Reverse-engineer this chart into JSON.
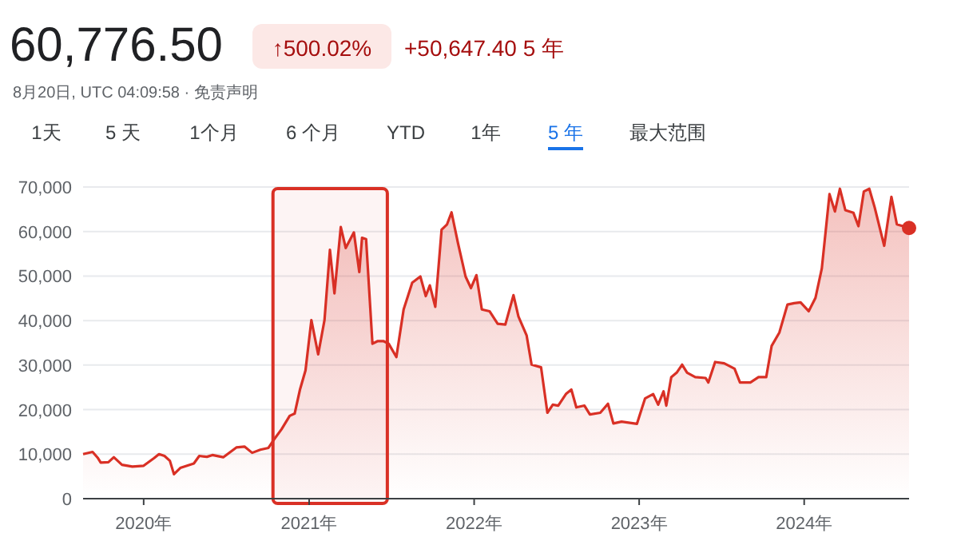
{
  "chart_data": {
    "type": "area",
    "title": "60,776.50",
    "subtitle": "8月20日, UTC 04:09:58 · 免责声明",
    "annotations": [
      "↑500.02%",
      "+50,647.40 5 年",
      "1天",
      "5 天",
      "1个月",
      "6 个月",
      "YTD",
      "1年",
      "5 年",
      "最大范围"
    ],
    "xlim": [
      "2019-08-20",
      "2024-08-20"
    ],
    "xticks": [
      {
        "value": "2020-01-01",
        "label": "2020年"
      },
      {
        "value": "2021-01-01",
        "label": "2021年"
      },
      {
        "value": "2022-01-01",
        "label": "2022年"
      },
      {
        "value": "2023-01-01",
        "label": "2023年"
      },
      {
        "value": "2024-01-01",
        "label": "2024年"
      }
    ],
    "ylim": [
      0,
      70000
    ],
    "yticks": [
      {
        "value": 0,
        "label": "0"
      },
      {
        "value": 10000,
        "label": "10,000"
      },
      {
        "value": 20000,
        "label": "20,000"
      },
      {
        "value": 30000,
        "label": "30,000"
      },
      {
        "value": 40000,
        "label": "40,000"
      },
      {
        "value": 50000,
        "label": "50,000"
      },
      {
        "value": 60000,
        "label": "60,000"
      },
      {
        "value": 70000,
        "label": "70,000"
      }
    ],
    "grid": "y",
    "bands": [
      {
        "axis": "x",
        "from": "2020-10-13",
        "to": "2021-06-23",
        "color": "#d93025"
      }
    ],
    "series": [
      {
        "color": "#d93025",
        "x": [
          "2019-08-20",
          "2019-09-10",
          "2019-09-22",
          "2019-09-28",
          "2019-10-15",
          "2019-10-27",
          "2019-11-14",
          "2019-12-07",
          "2020-01-01",
          "2020-01-24",
          "2020-02-04",
          "2020-02-16",
          "2020-02-28",
          "2020-03-08",
          "2020-03-22",
          "2020-04-21",
          "2020-05-03",
          "2020-05-20",
          "2020-06-01",
          "2020-06-25",
          "2020-07-24",
          "2020-08-11",
          "2020-08-28",
          "2020-09-15",
          "2020-10-03",
          "2020-10-14",
          "2020-11-01",
          "2020-11-19",
          "2020-11-30",
          "2020-12-12",
          "2020-12-24",
          "2021-01-06",
          "2021-01-21",
          "2021-02-04",
          "2021-02-16",
          "2021-02-26",
          "2021-03-12",
          "2021-03-23",
          "2021-04-10",
          "2021-04-22",
          "2021-04-28",
          "2021-05-07",
          "2021-05-21",
          "2021-06-02",
          "2021-06-14",
          "2021-06-26",
          "2021-07-13",
          "2021-07-29",
          "2021-08-17",
          "2021-09-04",
          "2021-09-16",
          "2021-09-25",
          "2021-10-07",
          "2021-10-21",
          "2021-11-02",
          "2021-11-12",
          "2021-11-26",
          "2021-12-13",
          "2021-12-25",
          "2022-01-06",
          "2022-01-18",
          "2022-02-04",
          "2022-02-22",
          "2022-03-11",
          "2022-03-29",
          "2022-04-09",
          "2022-04-27",
          "2022-05-08",
          "2022-05-29",
          "2022-06-12",
          "2022-06-24",
          "2022-07-06",
          "2022-07-23",
          "2022-08-04",
          "2022-08-15",
          "2022-09-02",
          "2022-09-14",
          "2022-10-07",
          "2022-10-24",
          "2022-11-05",
          "2022-11-23",
          "2022-12-27",
          "2023-01-14",
          "2023-02-01",
          "2023-02-12",
          "2023-02-24",
          "2023-03-02",
          "2023-03-13",
          "2023-03-25",
          "2023-04-06",
          "2023-04-17",
          "2023-05-05",
          "2023-05-28",
          "2023-06-03",
          "2023-06-18",
          "2023-07-08",
          "2023-07-31",
          "2023-08-12",
          "2023-09-04",
          "2023-09-22",
          "2023-10-09",
          "2023-10-21",
          "2023-11-07",
          "2023-11-25",
          "2023-12-10",
          "2023-12-24",
          "2024-01-11",
          "2024-01-26",
          "2024-02-09",
          "2024-02-26",
          "2024-03-09",
          "2024-03-20",
          "2024-04-01",
          "2024-04-19",
          "2024-04-30",
          "2024-05-12",
          "2024-05-24",
          "2024-06-05",
          "2024-06-26",
          "2024-07-12",
          "2024-07-24",
          "2024-08-20"
        ],
        "values": [
          10000,
          10500,
          9100,
          8100,
          8200,
          9300,
          7600,
          7200,
          7400,
          9100,
          10000,
          9600,
          8500,
          5500,
          6900,
          7900,
          9600,
          9400,
          9800,
          9300,
          11500,
          11700,
          10300,
          11000,
          11400,
          13100,
          15600,
          18600,
          19100,
          24600,
          28800,
          40100,
          32400,
          40100,
          55900,
          46100,
          61000,
          56300,
          59800,
          50900,
          58600,
          58300,
          34800,
          35400,
          35400,
          34800,
          31800,
          42500,
          48500,
          49900,
          45500,
          47900,
          43100,
          60400,
          61600,
          64300,
          57500,
          49900,
          47300,
          50200,
          42500,
          42100,
          39300,
          39100,
          45700,
          40900,
          36700,
          30100,
          29500,
          19300,
          21100,
          20900,
          23500,
          24500,
          20500,
          20900,
          18900,
          19300,
          21300,
          16900,
          17300,
          16800,
          22500,
          23500,
          21100,
          24100,
          20900,
          27300,
          28300,
          30100,
          28300,
          27300,
          27100,
          26100,
          30700,
          30400,
          29200,
          26100,
          26100,
          27300,
          27300,
          34300,
          37300,
          43600,
          43900,
          44100,
          42100,
          45100,
          51700,
          68400,
          64500,
          69600,
          64800,
          64200,
          61200,
          69000,
          69600,
          65400,
          56800,
          67800,
          61600,
          60800
        ]
      }
    ]
  }
}
